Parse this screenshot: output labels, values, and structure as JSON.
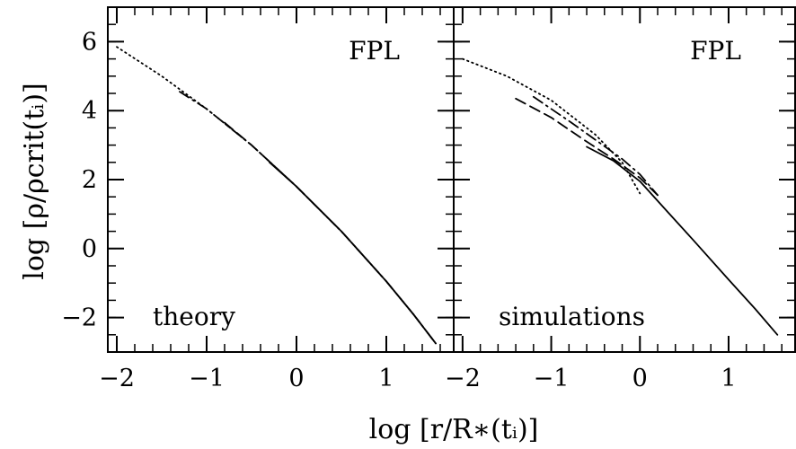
{
  "figure": {
    "xlabel": "log [r/R∗(tᵢ)]",
    "ylabel": "log [ρ/ρcrit(tᵢ)]"
  },
  "chart_data": [
    {
      "type": "line",
      "panel_label": "FPL",
      "corner_label": "theory",
      "xlim": [
        -2.1,
        1.75
      ],
      "ylim": [
        -3.0,
        7.0
      ],
      "xticks": [
        -2,
        -1,
        0,
        1
      ],
      "yticks": [
        -2,
        0,
        2,
        4,
        6
      ],
      "series": [
        {
          "style": "dotted",
          "x": [
            -2.0,
            -1.5,
            -1.0,
            -0.5,
            0.0,
            0.5,
            1.0,
            1.3,
            1.55
          ],
          "y": [
            5.85,
            5.0,
            4.05,
            3.0,
            1.8,
            0.5,
            -0.95,
            -1.9,
            -2.75
          ]
        },
        {
          "style": "dashdot",
          "x": [
            -1.3,
            -1.0,
            -0.5,
            0.0,
            0.5,
            1.0,
            1.3,
            1.55
          ],
          "y": [
            4.55,
            4.05,
            3.0,
            1.8,
            0.5,
            -0.95,
            -1.9,
            -2.75
          ]
        },
        {
          "style": "dashed",
          "x": [
            -0.8,
            -0.5,
            0.0,
            0.5,
            1.0,
            1.3,
            1.55
          ],
          "y": [
            3.65,
            3.0,
            1.8,
            0.5,
            -0.95,
            -1.9,
            -2.75
          ]
        },
        {
          "style": "solid",
          "x": [
            -0.3,
            0.0,
            0.5,
            1.0,
            1.3,
            1.55
          ],
          "y": [
            2.5,
            1.8,
            0.5,
            -0.95,
            -1.9,
            -2.75
          ]
        }
      ]
    },
    {
      "type": "line",
      "panel_label": "FPL",
      "corner_label": "simulations",
      "xlim": [
        -2.1,
        1.75
      ],
      "ylim": [
        -3.0,
        7.0
      ],
      "xticks": [
        -2,
        -1,
        0,
        1
      ],
      "yticks": [
        -2,
        0,
        2,
        4,
        6
      ],
      "series": [
        {
          "style": "dotted",
          "x": [
            -2.0,
            -1.5,
            -1.0,
            -0.5,
            -0.2,
            0.0
          ],
          "y": [
            5.5,
            5.0,
            4.3,
            3.3,
            2.5,
            1.6
          ]
        },
        {
          "style": "dashdot",
          "x": [
            -1.2,
            -0.8,
            -0.5,
            -0.2,
            0.0,
            0.2
          ],
          "y": [
            4.4,
            3.7,
            3.15,
            2.6,
            2.15,
            1.55
          ]
        },
        {
          "style": "dashed",
          "x": [
            -1.4,
            -1.0,
            -0.6,
            -0.3,
            0.0,
            0.2
          ],
          "y": [
            4.35,
            3.8,
            3.1,
            2.6,
            2.05,
            1.55
          ]
        },
        {
          "style": "solid",
          "x": [
            -0.6,
            -0.3,
            0.0,
            0.3,
            0.6,
            1.0,
            1.3,
            1.55
          ],
          "y": [
            2.95,
            2.55,
            1.95,
            1.1,
            0.25,
            -0.9,
            -1.75,
            -2.5
          ]
        }
      ]
    }
  ]
}
